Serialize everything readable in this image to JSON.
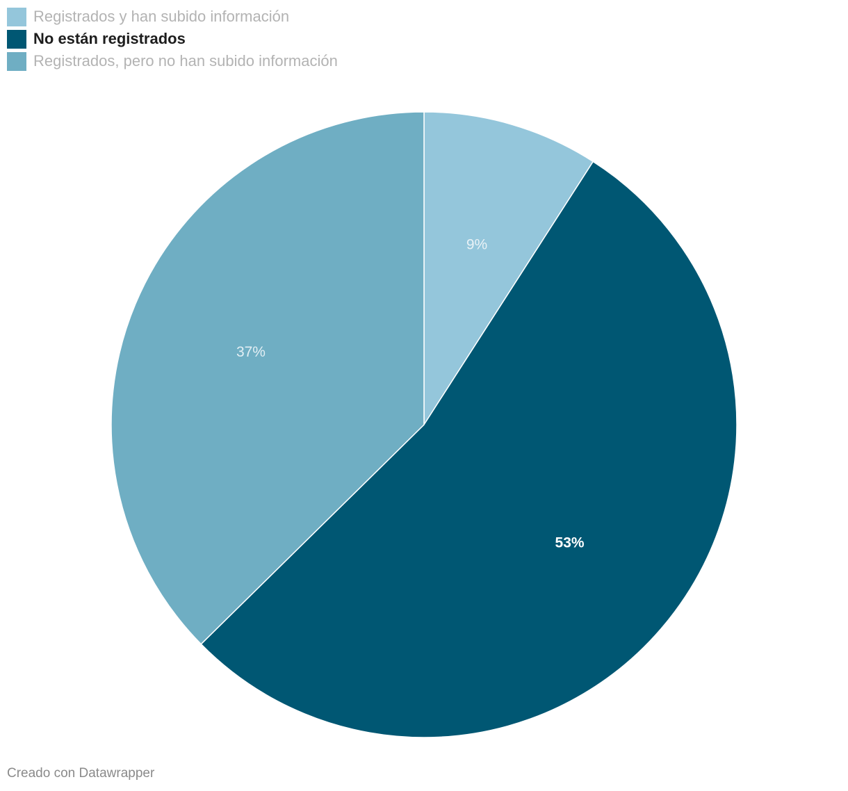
{
  "chart_data": {
    "type": "pie",
    "start_angle_deg": 0,
    "direction": "clockwise",
    "slices": [
      {
        "label": "Registrados y han subido información",
        "value": 9,
        "value_label": "9%",
        "color": "#94c6db",
        "label_color": "#e9f2f6",
        "highlighted": false
      },
      {
        "label": "No están registrados",
        "value": 53,
        "value_label": "53%",
        "color": "#005773",
        "label_color": "#ffffff",
        "highlighted": true
      },
      {
        "label": "Registrados, pero no han subido información",
        "value": 37,
        "value_label": "37%",
        "color": "#6faec3",
        "label_color": "#e3eff4",
        "highlighted": false
      }
    ]
  },
  "footer": {
    "credit": "Creado con Datawrapper"
  }
}
